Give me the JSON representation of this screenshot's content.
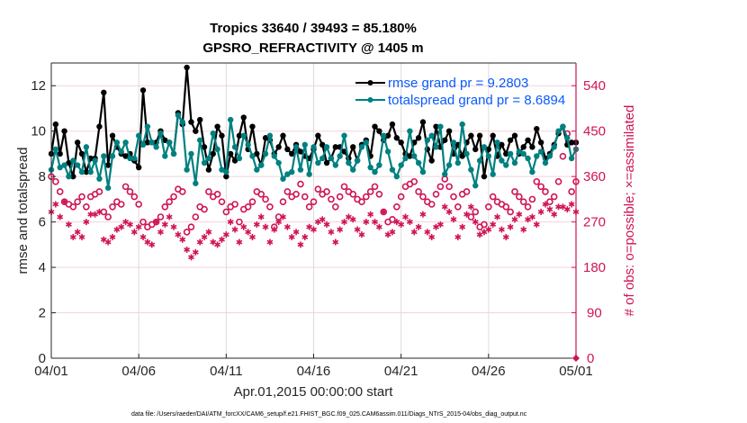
{
  "chart_data": {
    "type": "line",
    "title": "Tropics 33640 / 39493 = 85.180%",
    "subtitle": "GPSRO_REFRACTIVITY @ 1405 m",
    "xlabel": "Apr.01,2015 00:00:00 start",
    "ylabel": "rmse and totalspread",
    "y2label": "# of obs: o=possible; ×=assimilated",
    "footnote": "data file: /Users/raeder/DAI/ATM_forcXX/CAM6_setup/f.e21.FHIST_BGC.f09_025.CAM6assim.011/Diags_NTrS_2015-04/obs_diag_output.nc",
    "xlim_days": [
      0,
      30
    ],
    "ylim": [
      0,
      13
    ],
    "y2lim": [
      0,
      585
    ],
    "x_tick_labels": [
      "04/01",
      "04/06",
      "04/11",
      "04/16",
      "04/21",
      "04/26",
      "05/01"
    ],
    "x_tick_days": [
      0,
      5,
      10,
      15,
      20,
      25,
      30
    ],
    "y_ticks": [
      0,
      2,
      4,
      6,
      8,
      10,
      12
    ],
    "y2_ticks": [
      0,
      90,
      180,
      270,
      360,
      450,
      540
    ],
    "grid": true,
    "legend_position": "top-right",
    "colors": {
      "rmse": "#000000",
      "totalspread": "#008080",
      "obs": "#d01356",
      "legend_text": "#0a5aff",
      "grid": "#f2d3df"
    },
    "time_step_days": 0.25,
    "series": [
      {
        "name": "rmse grand pr = 9.2803",
        "axis": "left",
        "marker": "filled-circle",
        "values": [
          9.0,
          10.3,
          9.0,
          10.0,
          8.6,
          8.0,
          9.5,
          9.0,
          8.2,
          8.8,
          8.8,
          10.2,
          11.7,
          8.5,
          9.8,
          9.3,
          9.0,
          8.9,
          9.0,
          8.7,
          8.4,
          11.8,
          9.5,
          9.5,
          9.5,
          10.0,
          9.6,
          9.5,
          9.0,
          10.8,
          10.3,
          12.8,
          10.4,
          10.0,
          10.5,
          9.3,
          8.3,
          9.0,
          10.2,
          9.8,
          8.0,
          9.0,
          8.7,
          9.8,
          10.6,
          9.2,
          10.2,
          9.0,
          8.5,
          9.7,
          9.6,
          9.0,
          9.3,
          9.8,
          9.2,
          9.0,
          9.4,
          9.1,
          8.9,
          8.8,
          9.2,
          9.8,
          9.4,
          8.6,
          8.8,
          9.3,
          9.3,
          9.1,
          8.8,
          9.3,
          8.7,
          9.4,
          9.6,
          8.9,
          10.2,
          10.0,
          9.6,
          9.8,
          10.3,
          9.7,
          9.5,
          9.0,
          8.9,
          9.5,
          9.7,
          10.4,
          9.2,
          8.7,
          10.2,
          9.3,
          9.6,
          10.0,
          9.0,
          9.4,
          8.9,
          9.5,
          9.8,
          9.2,
          9.8,
          8.0,
          9.2,
          9.8,
          8.9,
          9.4,
          9.0,
          9.6,
          9.8,
          9.0,
          9.3,
          9.6,
          9.3,
          10.1,
          9.5,
          8.8,
          9.0,
          9.4,
          9.9,
          10.2,
          9.4,
          9.5,
          9.5
        ]
      },
      {
        "name": "totalspread grand pr = 8.6894",
        "axis": "left",
        "marker": "filled-circle",
        "values": [
          8.3,
          9.2,
          8.4,
          8.5,
          8.0,
          8.7,
          8.5,
          8.2,
          9.3,
          8.2,
          8.7,
          7.9,
          8.9,
          7.5,
          8.9,
          9.5,
          9.1,
          9.5,
          8.8,
          8.8,
          9.8,
          9.4,
          10.2,
          9.5,
          9.3,
          9.9,
          8.9,
          9.5,
          9.0,
          10.7,
          10.4,
          8.3,
          9.0,
          7.7,
          9.6,
          8.6,
          8.8,
          9.9,
          9.2,
          8.3,
          8.2,
          10.5,
          9.3,
          8.8,
          9.8,
          9.4,
          8.9,
          8.3,
          8.5,
          9.0,
          9.8,
          8.9,
          8.6,
          7.9,
          8.1,
          8.2,
          9.3,
          8.3,
          9.4,
          8.1,
          9.3,
          8.6,
          8.8,
          9.3,
          8.8,
          8.5,
          8.9,
          9.8,
          8.6,
          8.3,
          8.7,
          9.3,
          9.5,
          8.4,
          8.2,
          8.5,
          9.8,
          9.1,
          8.3,
          8.0,
          8.5,
          8.8,
          10.0,
          8.9,
          8.6,
          8.2,
          9.6,
          9.8,
          9.3,
          10.2,
          8.1,
          8.5,
          9.5,
          8.6,
          10.3,
          9.0,
          8.3,
          7.6,
          8.7,
          9.3,
          8.9,
          8.1,
          9.5,
          8.7,
          8.5,
          9.0,
          8.6,
          9.1,
          9.0,
          8.8,
          8.2,
          8.9,
          9.1,
          8.6,
          8.9,
          9.3,
          10.0,
          10.2,
          9.7,
          8.8,
          9.2
        ]
      },
      {
        "name": "obs possible",
        "axis": "right",
        "marker": "open-circle",
        "values": [
          360,
          350,
          330,
          310,
          305,
          300,
          310,
          320,
          300,
          320,
          325,
          330,
          290,
          280,
          300,
          310,
          305,
          340,
          330,
          320,
          305,
          270,
          260,
          265,
          270,
          280,
          300,
          310,
          320,
          335,
          330,
          250,
          260,
          280,
          300,
          295,
          330,
          320,
          325,
          310,
          290,
          300,
          305,
          270,
          295,
          300,
          310,
          330,
          325,
          315,
          300,
          260,
          280,
          310,
          330,
          320,
          325,
          345,
          320,
          300,
          310,
          335,
          325,
          330,
          315,
          300,
          320,
          340,
          330,
          325,
          315,
          310,
          320,
          330,
          340,
          325,
          290,
          270,
          275,
          300,
          320,
          340,
          345,
          350,
          330,
          320,
          310,
          305,
          325,
          340,
          355,
          340,
          320,
          300,
          325,
          330,
          280,
          290,
          260,
          265,
          300,
          320,
          310,
          305,
          300,
          290,
          330,
          320,
          310,
          300,
          315,
          350,
          340,
          330,
          310,
          320,
          350,
          400,
          445,
          330,
          350
        ]
      },
      {
        "name": "obs assimilated",
        "axis": "right",
        "marker": "asterisk",
        "values": [
          290,
          305,
          280,
          310,
          265,
          240,
          250,
          240,
          270,
          285,
          285,
          290,
          235,
          230,
          240,
          255,
          260,
          270,
          265,
          250,
          260,
          240,
          230,
          225,
          270,
          250,
          265,
          280,
          260,
          245,
          235,
          215,
          200,
          210,
          230,
          240,
          250,
          230,
          225,
          235,
          245,
          270,
          255,
          230,
          260,
          250,
          240,
          265,
          280,
          260,
          230,
          255,
          270,
          280,
          260,
          240,
          250,
          225,
          240,
          260,
          255,
          270,
          275,
          265,
          250,
          230,
          255,
          270,
          280,
          275,
          255,
          245,
          270,
          285,
          270,
          260,
          290,
          245,
          250,
          270,
          265,
          280,
          270,
          250,
          260,
          285,
          250,
          240,
          260,
          265,
          300,
          290,
          275,
          240,
          260,
          285,
          300,
          270,
          245,
          250,
          255,
          265,
          280,
          255,
          240,
          260,
          275,
          285,
          255,
          275,
          280,
          265,
          290,
          305,
          295,
          285,
          300,
          300,
          295,
          305,
          290
        ]
      }
    ]
  }
}
